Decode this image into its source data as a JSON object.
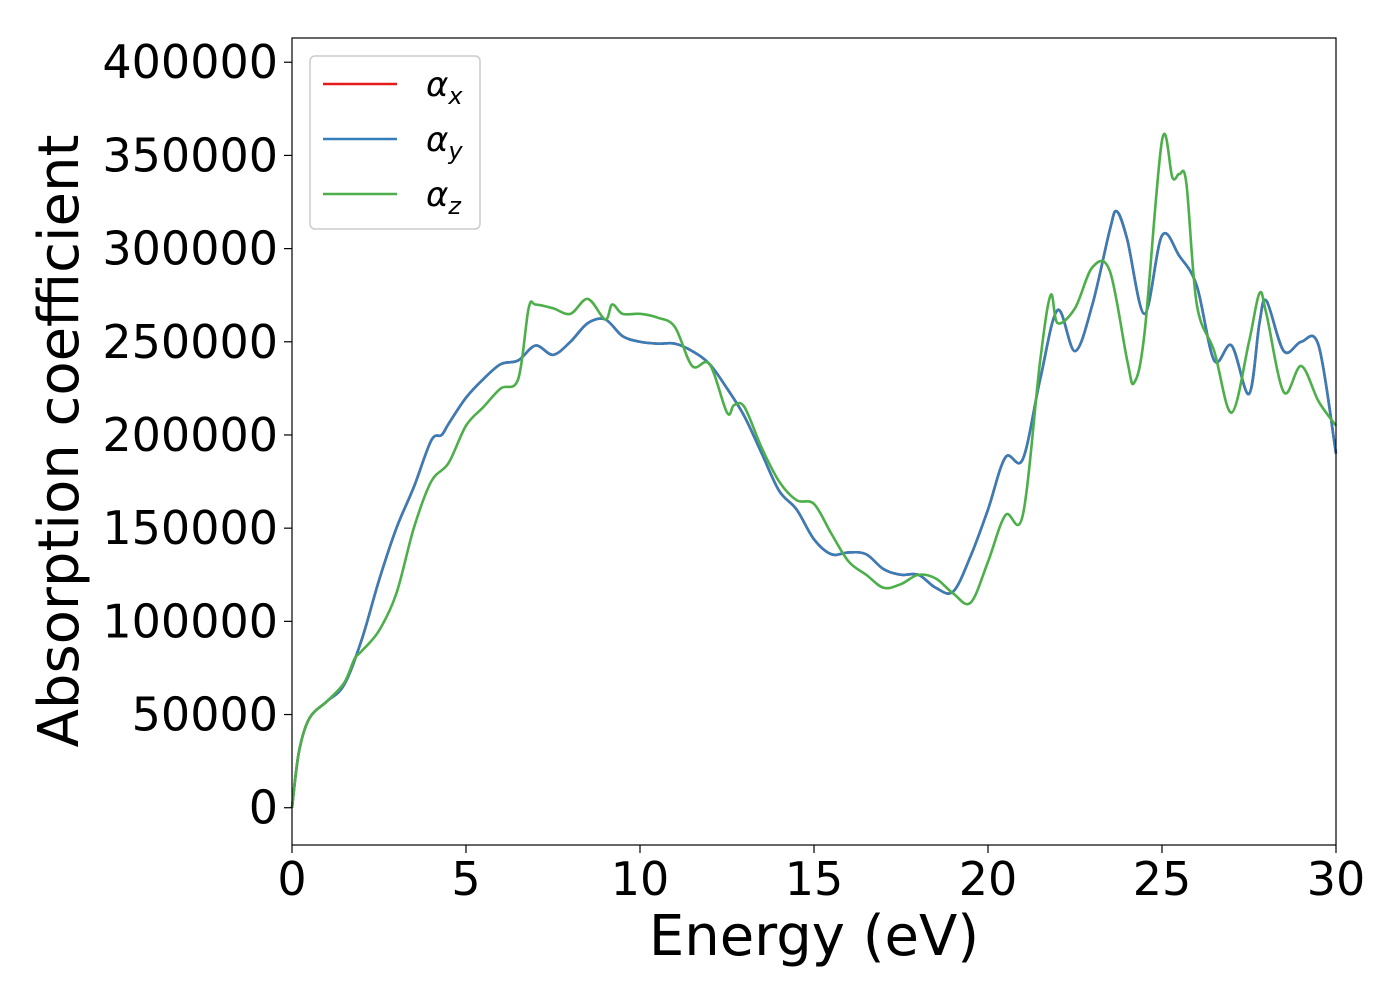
{
  "chart_data": {
    "type": "line",
    "title": "",
    "xlabel": "Energy (eV)",
    "ylabel": "Absorption coefficient",
    "xlim": [
      0,
      30
    ],
    "ylim": [
      -20000,
      413000
    ],
    "xticks": [
      0,
      5,
      10,
      15,
      20,
      25,
      30
    ],
    "yticks": [
      0,
      50000,
      100000,
      150000,
      200000,
      250000,
      300000,
      350000,
      400000
    ],
    "grid": false,
    "legend": {
      "placement": "top-left",
      "entries": [
        {
          "symbol": "α",
          "sub": "x",
          "color": "#e41a1c"
        },
        {
          "symbol": "α",
          "sub": "y",
          "color": "#377eb8"
        },
        {
          "symbol": "α",
          "sub": "z",
          "color": "#4daf4a"
        }
      ]
    },
    "series": [
      {
        "key": "alpha_x",
        "color": "#e41a1c",
        "x": [
          0,
          0.2,
          0.5,
          1.0,
          1.5,
          2.0,
          2.5,
          3.0,
          3.5,
          4.0,
          4.3,
          4.5,
          5.0,
          5.5,
          6.0,
          6.5,
          7.0,
          7.5,
          8.0,
          8.5,
          9.0,
          9.5,
          10.0,
          10.5,
          11.0,
          11.5,
          12.0,
          12.5,
          13.0,
          13.5,
          14.0,
          14.5,
          15.0,
          15.5,
          16.0,
          16.5,
          17.0,
          17.5,
          18.0,
          18.5,
          19.0,
          19.5,
          20.0,
          20.5,
          21.0,
          21.5,
          22.0,
          22.5,
          23.0,
          23.5,
          23.7,
          24.0,
          24.5,
          25.0,
          25.5,
          26.0,
          26.5,
          27.0,
          27.5,
          27.8,
          28.0,
          28.5,
          29.0,
          29.5,
          30.0
        ],
        "y": [
          0,
          30000,
          48000,
          57000,
          66000,
          90000,
          122000,
          150000,
          172000,
          197000,
          200000,
          206000,
          220000,
          230000,
          238000,
          240000,
          248000,
          243000,
          250000,
          260000,
          262000,
          253000,
          250000,
          249000,
          249000,
          245000,
          238000,
          225000,
          210000,
          190000,
          170000,
          160000,
          144000,
          136000,
          137000,
          136000,
          128000,
          125000,
          125000,
          118000,
          116000,
          135000,
          160000,
          188000,
          187000,
          230000,
          267000,
          245000,
          270000,
          310000,
          320000,
          305000,
          265000,
          307000,
          296000,
          280000,
          240000,
          248000,
          222000,
          260000,
          272000,
          245000,
          250000,
          248000,
          190000
        ]
      },
      {
        "key": "alpha_y",
        "color": "#377eb8",
        "x": [
          0,
          0.2,
          0.5,
          1.0,
          1.5,
          2.0,
          2.5,
          3.0,
          3.5,
          4.0,
          4.3,
          4.5,
          5.0,
          5.5,
          6.0,
          6.5,
          7.0,
          7.5,
          8.0,
          8.5,
          9.0,
          9.5,
          10.0,
          10.5,
          11.0,
          11.5,
          12.0,
          12.5,
          13.0,
          13.5,
          14.0,
          14.5,
          15.0,
          15.5,
          16.0,
          16.5,
          17.0,
          17.5,
          18.0,
          18.5,
          19.0,
          19.5,
          20.0,
          20.5,
          21.0,
          21.5,
          22.0,
          22.5,
          23.0,
          23.5,
          23.7,
          24.0,
          24.5,
          25.0,
          25.5,
          26.0,
          26.5,
          27.0,
          27.5,
          27.8,
          28.0,
          28.5,
          29.0,
          29.5,
          30.0
        ],
        "y": [
          0,
          30000,
          48000,
          57000,
          66000,
          90000,
          122000,
          150000,
          172000,
          197000,
          200000,
          206000,
          220000,
          230000,
          238000,
          240000,
          248000,
          243000,
          250000,
          260000,
          262000,
          253000,
          250000,
          249000,
          249000,
          245000,
          238000,
          225000,
          210000,
          190000,
          170000,
          160000,
          144000,
          136000,
          137000,
          136000,
          128000,
          125000,
          125000,
          118000,
          116000,
          135000,
          160000,
          188000,
          187000,
          230000,
          267000,
          245000,
          270000,
          310000,
          320000,
          305000,
          265000,
          307000,
          296000,
          280000,
          240000,
          248000,
          222000,
          260000,
          272000,
          245000,
          250000,
          248000,
          190000
        ]
      },
      {
        "key": "alpha_z",
        "color": "#4daf4a",
        "x": [
          0,
          0.2,
          0.5,
          1.0,
          1.5,
          1.8,
          2.0,
          2.5,
          3.0,
          3.5,
          4.0,
          4.5,
          5.0,
          5.5,
          6.0,
          6.5,
          6.8,
          7.0,
          7.5,
          8.0,
          8.5,
          9.0,
          9.2,
          9.5,
          10.0,
          10.5,
          11.0,
          11.5,
          12.0,
          12.5,
          12.7,
          13.0,
          13.5,
          14.0,
          14.5,
          15.0,
          15.5,
          16.0,
          16.5,
          17.0,
          17.5,
          18.0,
          18.5,
          19.0,
          19.5,
          20.0,
          20.5,
          21.0,
          21.5,
          21.8,
          22.0,
          22.5,
          23.0,
          23.5,
          24.0,
          24.2,
          24.5,
          25.0,
          25.3,
          25.5,
          25.7,
          26.0,
          26.5,
          27.0,
          27.5,
          27.8,
          28.0,
          28.5,
          29.0,
          29.5,
          30.0
        ],
        "y": [
          0,
          30000,
          48000,
          57000,
          67000,
          80000,
          84000,
          95000,
          115000,
          150000,
          175000,
          185000,
          205000,
          215000,
          225000,
          230000,
          268000,
          270000,
          268000,
          265000,
          273000,
          262000,
          270000,
          265000,
          265000,
          263000,
          258000,
          237000,
          238000,
          212000,
          216000,
          215000,
          193000,
          175000,
          165000,
          163000,
          147000,
          132000,
          125000,
          118000,
          120000,
          125000,
          123000,
          115000,
          110000,
          132000,
          157000,
          157000,
          240000,
          275000,
          260000,
          268000,
          290000,
          288000,
          240000,
          228000,
          255000,
          358000,
          338000,
          340000,
          335000,
          270000,
          245000,
          212000,
          250000,
          276000,
          265000,
          223000,
          237000,
          218000,
          205000
        ]
      }
    ]
  }
}
